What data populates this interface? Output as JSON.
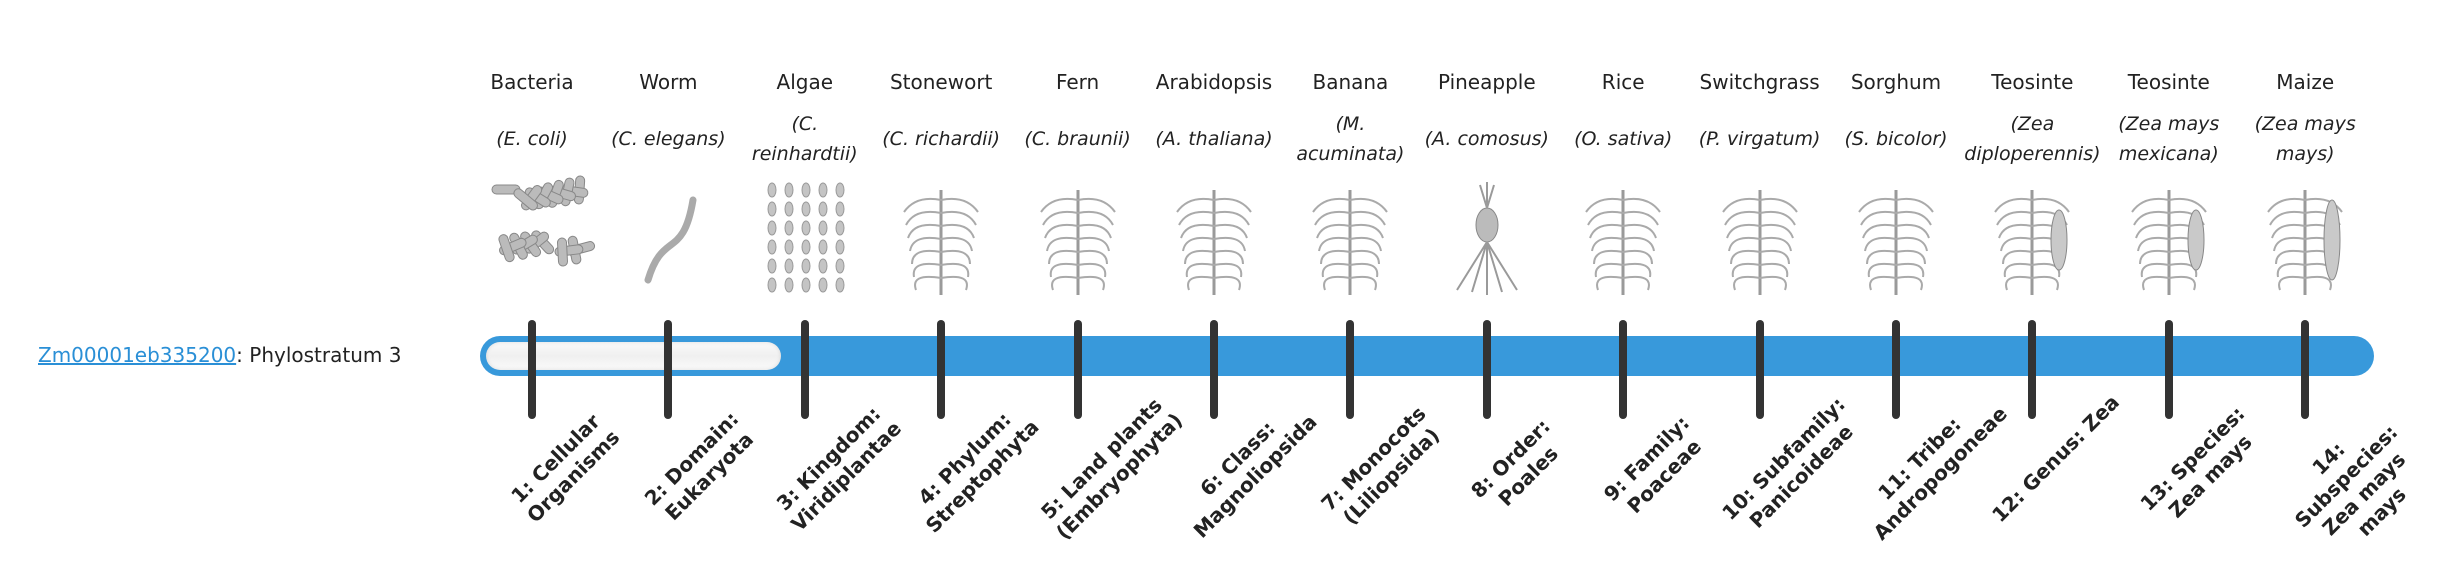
{
  "gene": {
    "id": "Zm00001eb335200",
    "suffix": ": Phylostratum 3"
  },
  "progress": {
    "phylostratum": 3,
    "total": 14
  },
  "colors": {
    "bar": "#3899db",
    "tick": "#333333",
    "link": "#2a8fd6"
  },
  "organisms": [
    {
      "common": "Bacteria",
      "species": "(E. coli)",
      "icon": "bacteria-image"
    },
    {
      "common": "Worm",
      "species": "(C. elegans)",
      "icon": "worm-image"
    },
    {
      "common": "Algae",
      "species": "(C. reinhardtii)",
      "icon": "algae-image"
    },
    {
      "common": "Stonewort",
      "species": "(C. richardii)",
      "icon": "stonewort-image"
    },
    {
      "common": "Fern",
      "species": "(C. braunii)",
      "icon": "fern-image"
    },
    {
      "common": "Arabidopsis",
      "species": "(A. thaliana)",
      "icon": "arabidopsis-image"
    },
    {
      "common": "Banana",
      "species": "(M. acuminata)",
      "icon": "banana-image"
    },
    {
      "common": "Pineapple",
      "species": "(A. comosus)",
      "icon": "pineapple-image"
    },
    {
      "common": "Rice",
      "species": "(O. sativa)",
      "icon": "rice-image"
    },
    {
      "common": "Switchgrass",
      "species": "(P. virgatum)",
      "icon": "switchgrass-image"
    },
    {
      "common": "Sorghum",
      "species": "(S. bicolor)",
      "icon": "sorghum-image"
    },
    {
      "common": "Teosinte",
      "species": "(Zea diploperennis)",
      "icon": "teosinte-image"
    },
    {
      "common": "Teosinte",
      "species": "(Zea mays mexicana)",
      "icon": "teosinte-image"
    },
    {
      "common": "Maize",
      "species": "(Zea mays mays)",
      "icon": "maize-image"
    }
  ],
  "strata": [
    "1: Cellular Organisms",
    "2: Domain: Eukaryota",
    "3: Kingdom: Viridiplantae",
    "4: Phylum: Streptophyta",
    "5: Land plants (Embryophyta)",
    "6: Class: Magnoliopsida",
    "7: Monocots (Liliopsida)",
    "8: Order: Poales",
    "9: Family: Poaceae",
    "10: Subfamily: Panicoideae",
    "11: Tribe: Andropogoneae",
    "12: Genus: Zea",
    "13: Species: Zea mays",
    "14: Subspecies: Zea mays mays"
  ]
}
